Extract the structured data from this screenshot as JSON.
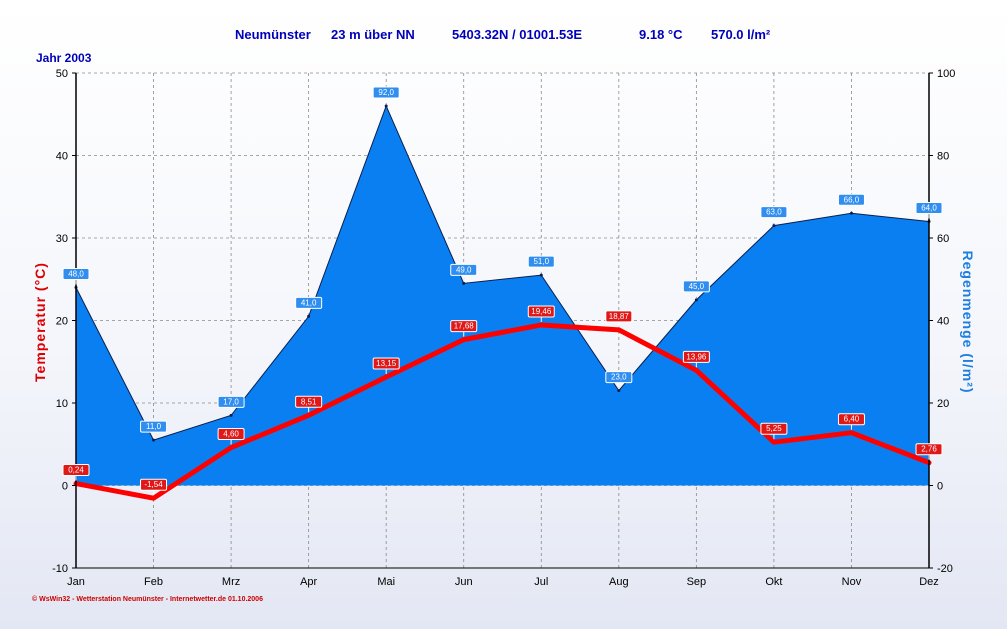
{
  "header": {
    "station": "Neumünster",
    "altitude": "23 m über NN",
    "coordinates": "5403.32N / 01001.53E",
    "avg_temp": "9.18 °C",
    "total_rain": "570.0 l/m²"
  },
  "year_label": "Jahr  2003",
  "credit": "© WsWin32 - Wetterstation Neumünster - Internetwetter.de  01.10.2006",
  "colors": {
    "temperature": "#ff0000",
    "rain_fill": "#0a7ff2",
    "rain_edge": "#0a1f4f",
    "temp_label_bg": "#e01818",
    "rain_label_bg": "#2f8ef0",
    "left_axis_title": "#dd0000",
    "right_axis_title": "#1e7fe0"
  },
  "chart_data": {
    "type": "line",
    "categories": [
      "Jan",
      "Feb",
      "Mrz",
      "Apr",
      "Mai",
      "Jun",
      "Jul",
      "Aug",
      "Sep",
      "Okt",
      "Nov",
      "Dez"
    ],
    "series": [
      {
        "name": "Temperatur",
        "axis": "left",
        "kind": "line",
        "values": [
          0.24,
          -1.54,
          4.6,
          8.51,
          13.15,
          17.68,
          19.46,
          18.87,
          13.96,
          5.25,
          6.4,
          2.76
        ],
        "labels": [
          "0,24",
          "-1,54",
          "4,60",
          "8,51",
          "13,15",
          "17,68",
          "19,46",
          "18,87",
          "13,96",
          "5,25",
          "6,40",
          "2,76"
        ]
      },
      {
        "name": "Regenmenge",
        "axis": "right",
        "kind": "area",
        "values": [
          48.0,
          11.0,
          17.0,
          41.0,
          92.0,
          49.0,
          51.0,
          23.0,
          45.0,
          63.0,
          66.0,
          64.0
        ],
        "labels": [
          "48,0",
          "11,0",
          "17,0",
          "41,0",
          "92,0",
          "49,0",
          "51,0",
          "23,0",
          "45,0",
          "63,0",
          "66,0",
          "64,0"
        ]
      }
    ],
    "ylabel_left": "Temperatur  (°C)",
    "ylabel_right": "Regenmenge  (l/m²)",
    "ylim_left": [
      -10,
      50
    ],
    "ylim_right": [
      -20,
      100
    ],
    "yticks_left": [
      "-10",
      "0",
      "10",
      "20",
      "30",
      "40",
      "50"
    ],
    "yticks_right": [
      "-20",
      "0",
      "20",
      "40",
      "60",
      "80",
      "100"
    ],
    "grid": true
  }
}
